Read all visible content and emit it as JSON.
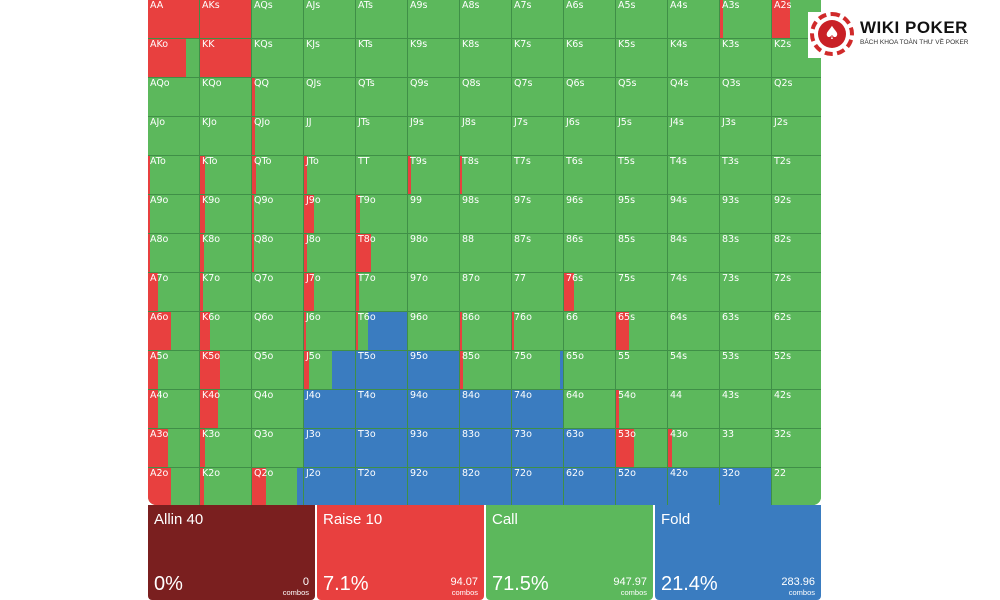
{
  "brand": {
    "name": "WIKI POKER",
    "tagline": "BÁCH KHOA TOÀN THƯ VỀ POKER",
    "icon": "spade-icon"
  },
  "colors": {
    "allin": "#7a1f1f",
    "raise": "#e8403f",
    "call": "#5cb85c",
    "fold": "#3a7cc0"
  },
  "actions": [
    {
      "name": "Allin 40",
      "percent": "0%",
      "combos": "0",
      "combos_label": "combos",
      "color": "#7a1f1f"
    },
    {
      "name": "Raise 10",
      "percent": "7.1%",
      "combos": "94.07",
      "combos_label": "combos",
      "color": "#e8403f"
    },
    {
      "name": "Call",
      "percent": "71.5%",
      "combos": "947.97",
      "combos_label": "combos",
      "color": "#5cb85c"
    },
    {
      "name": "Fold",
      "percent": "21.4%",
      "combos": "283.96",
      "combos_label": "combos",
      "color": "#3a7cc0"
    }
  ],
  "ranks": [
    "A",
    "K",
    "Q",
    "J",
    "T",
    "9",
    "8",
    "7",
    "6",
    "5",
    "4",
    "3",
    "2"
  ],
  "hands": [
    [
      {
        "label": "AA",
        "raise": 1,
        "call": 0,
        "fold": 0
      },
      {
        "label": "AKs",
        "raise": 1,
        "call": 0,
        "fold": 0
      },
      {
        "label": "AQs",
        "raise": 0,
        "call": 1,
        "fold": 0
      },
      {
        "label": "AJs",
        "raise": 0,
        "call": 1,
        "fold": 0
      },
      {
        "label": "ATs",
        "raise": 0,
        "call": 1,
        "fold": 0
      },
      {
        "label": "A9s",
        "raise": 0,
        "call": 1,
        "fold": 0
      },
      {
        "label": "A8s",
        "raise": 0,
        "call": 1,
        "fold": 0
      },
      {
        "label": "A7s",
        "raise": 0,
        "call": 1,
        "fold": 0
      },
      {
        "label": "A6s",
        "raise": 0,
        "call": 1,
        "fold": 0
      },
      {
        "label": "A5s",
        "raise": 0,
        "call": 1,
        "fold": 0
      },
      {
        "label": "A4s",
        "raise": 0,
        "call": 1,
        "fold": 0
      },
      {
        "label": "A3s",
        "raise": 0.05,
        "call": 0.95,
        "fold": 0
      },
      {
        "label": "A2s",
        "raise": 0.35,
        "call": 0.65,
        "fold": 0
      }
    ],
    [
      {
        "label": "AKo",
        "raise": 0.75,
        "call": 0.25,
        "fold": 0
      },
      {
        "label": "KK",
        "raise": 1,
        "call": 0,
        "fold": 0
      },
      {
        "label": "KQs",
        "raise": 0,
        "call": 1,
        "fold": 0
      },
      {
        "label": "KJs",
        "raise": 0,
        "call": 1,
        "fold": 0
      },
      {
        "label": "KTs",
        "raise": 0,
        "call": 1,
        "fold": 0
      },
      {
        "label": "K9s",
        "raise": 0,
        "call": 1,
        "fold": 0
      },
      {
        "label": "K8s",
        "raise": 0,
        "call": 1,
        "fold": 0
      },
      {
        "label": "K7s",
        "raise": 0,
        "call": 1,
        "fold": 0
      },
      {
        "label": "K6s",
        "raise": 0,
        "call": 1,
        "fold": 0
      },
      {
        "label": "K5s",
        "raise": 0,
        "call": 1,
        "fold": 0
      },
      {
        "label": "K4s",
        "raise": 0,
        "call": 1,
        "fold": 0
      },
      {
        "label": "K3s",
        "raise": 0,
        "call": 1,
        "fold": 0
      },
      {
        "label": "K2s",
        "raise": 0,
        "call": 1,
        "fold": 0
      }
    ],
    [
      {
        "label": "AQo",
        "raise": 0,
        "call": 1,
        "fold": 0
      },
      {
        "label": "KQo",
        "raise": 0,
        "call": 1,
        "fold": 0
      },
      {
        "label": "QQ",
        "raise": 0.05,
        "call": 0.95,
        "fold": 0
      },
      {
        "label": "QJs",
        "raise": 0,
        "call": 1,
        "fold": 0
      },
      {
        "label": "QTs",
        "raise": 0,
        "call": 1,
        "fold": 0
      },
      {
        "label": "Q9s",
        "raise": 0,
        "call": 1,
        "fold": 0
      },
      {
        "label": "Q8s",
        "raise": 0,
        "call": 1,
        "fold": 0
      },
      {
        "label": "Q7s",
        "raise": 0,
        "call": 1,
        "fold": 0
      },
      {
        "label": "Q6s",
        "raise": 0,
        "call": 1,
        "fold": 0
      },
      {
        "label": "Q5s",
        "raise": 0,
        "call": 1,
        "fold": 0
      },
      {
        "label": "Q4s",
        "raise": 0,
        "call": 1,
        "fold": 0
      },
      {
        "label": "Q3s",
        "raise": 0,
        "call": 1,
        "fold": 0
      },
      {
        "label": "Q2s",
        "raise": 0,
        "call": 1,
        "fold": 0
      }
    ],
    [
      {
        "label": "AJo",
        "raise": 0,
        "call": 1,
        "fold": 0
      },
      {
        "label": "KJo",
        "raise": 0,
        "call": 1,
        "fold": 0
      },
      {
        "label": "QJo",
        "raise": 0.05,
        "call": 0.95,
        "fold": 0
      },
      {
        "label": "JJ",
        "raise": 0,
        "call": 1,
        "fold": 0
      },
      {
        "label": "JTs",
        "raise": 0,
        "call": 1,
        "fold": 0
      },
      {
        "label": "J9s",
        "raise": 0,
        "call": 1,
        "fold": 0
      },
      {
        "label": "J8s",
        "raise": 0,
        "call": 1,
        "fold": 0
      },
      {
        "label": "J7s",
        "raise": 0,
        "call": 1,
        "fold": 0
      },
      {
        "label": "J6s",
        "raise": 0,
        "call": 1,
        "fold": 0
      },
      {
        "label": "J5s",
        "raise": 0,
        "call": 1,
        "fold": 0
      },
      {
        "label": "J4s",
        "raise": 0,
        "call": 1,
        "fold": 0
      },
      {
        "label": "J3s",
        "raise": 0,
        "call": 1,
        "fold": 0
      },
      {
        "label": "J2s",
        "raise": 0,
        "call": 1,
        "fold": 0
      }
    ],
    [
      {
        "label": "ATo",
        "raise": 0.04,
        "call": 0.96,
        "fold": 0
      },
      {
        "label": "KTo",
        "raise": 0.1,
        "call": 0.9,
        "fold": 0
      },
      {
        "label": "QTo",
        "raise": 0.08,
        "call": 0.92,
        "fold": 0
      },
      {
        "label": "JTo",
        "raise": 0.05,
        "call": 0.95,
        "fold": 0
      },
      {
        "label": "TT",
        "raise": 0,
        "call": 1,
        "fold": 0
      },
      {
        "label": "T9s",
        "raise": 0.05,
        "call": 0.95,
        "fold": 0
      },
      {
        "label": "T8s",
        "raise": 0.04,
        "call": 0.96,
        "fold": 0
      },
      {
        "label": "T7s",
        "raise": 0,
        "call": 1,
        "fold": 0
      },
      {
        "label": "T6s",
        "raise": 0,
        "call": 1,
        "fold": 0
      },
      {
        "label": "T5s",
        "raise": 0,
        "call": 1,
        "fold": 0
      },
      {
        "label": "T4s",
        "raise": 0,
        "call": 1,
        "fold": 0
      },
      {
        "label": "T3s",
        "raise": 0,
        "call": 1,
        "fold": 0
      },
      {
        "label": "T2s",
        "raise": 0,
        "call": 1,
        "fold": 0
      }
    ],
    [
      {
        "label": "A9o",
        "raise": 0.04,
        "call": 0.96,
        "fold": 0
      },
      {
        "label": "K9o",
        "raise": 0.1,
        "call": 0.9,
        "fold": 0
      },
      {
        "label": "Q9o",
        "raise": 0.04,
        "call": 0.96,
        "fold": 0
      },
      {
        "label": "J9o",
        "raise": 0.2,
        "call": 0.8,
        "fold": 0
      },
      {
        "label": "T9o",
        "raise": 0.08,
        "call": 0.92,
        "fold": 0
      },
      {
        "label": "99",
        "raise": 0,
        "call": 1,
        "fold": 0
      },
      {
        "label": "98s",
        "raise": 0,
        "call": 1,
        "fold": 0
      },
      {
        "label": "97s",
        "raise": 0,
        "call": 1,
        "fold": 0
      },
      {
        "label": "96s",
        "raise": 0,
        "call": 1,
        "fold": 0
      },
      {
        "label": "95s",
        "raise": 0,
        "call": 1,
        "fold": 0
      },
      {
        "label": "94s",
        "raise": 0,
        "call": 1,
        "fold": 0
      },
      {
        "label": "93s",
        "raise": 0,
        "call": 1,
        "fold": 0
      },
      {
        "label": "92s",
        "raise": 0,
        "call": 1,
        "fold": 0
      }
    ],
    [
      {
        "label": "A8o",
        "raise": 0.04,
        "call": 0.96,
        "fold": 0
      },
      {
        "label": "K8o",
        "raise": 0.08,
        "call": 0.92,
        "fold": 0
      },
      {
        "label": "Q8o",
        "raise": 0.04,
        "call": 0.96,
        "fold": 0
      },
      {
        "label": "J8o",
        "raise": 0.06,
        "call": 0.94,
        "fold": 0
      },
      {
        "label": "T8o",
        "raise": 0.3,
        "call": 0.7,
        "fold": 0
      },
      {
        "label": "98o",
        "raise": 0,
        "call": 1,
        "fold": 0
      },
      {
        "label": "88",
        "raise": 0,
        "call": 1,
        "fold": 0
      },
      {
        "label": "87s",
        "raise": 0,
        "call": 1,
        "fold": 0
      },
      {
        "label": "86s",
        "raise": 0,
        "call": 1,
        "fold": 0
      },
      {
        "label": "85s",
        "raise": 0,
        "call": 1,
        "fold": 0
      },
      {
        "label": "84s",
        "raise": 0,
        "call": 1,
        "fold": 0
      },
      {
        "label": "83s",
        "raise": 0,
        "call": 1,
        "fold": 0
      },
      {
        "label": "82s",
        "raise": 0,
        "call": 1,
        "fold": 0
      }
    ],
    [
      {
        "label": "A7o",
        "raise": 0.2,
        "call": 0.8,
        "fold": 0
      },
      {
        "label": "K7o",
        "raise": 0.06,
        "call": 0.94,
        "fold": 0
      },
      {
        "label": "Q7o",
        "raise": 0,
        "call": 1,
        "fold": 0
      },
      {
        "label": "J7o",
        "raise": 0.2,
        "call": 0.8,
        "fold": 0
      },
      {
        "label": "T7o",
        "raise": 0.06,
        "call": 0.94,
        "fold": 0
      },
      {
        "label": "97o",
        "raise": 0,
        "call": 1,
        "fold": 0
      },
      {
        "label": "87o",
        "raise": 0,
        "call": 1,
        "fold": 0
      },
      {
        "label": "77",
        "raise": 0,
        "call": 1,
        "fold": 0
      },
      {
        "label": "76s",
        "raise": 0.2,
        "call": 0.8,
        "fold": 0
      },
      {
        "label": "75s",
        "raise": 0,
        "call": 1,
        "fold": 0
      },
      {
        "label": "74s",
        "raise": 0,
        "call": 1,
        "fold": 0
      },
      {
        "label": "73s",
        "raise": 0,
        "call": 1,
        "fold": 0
      },
      {
        "label": "72s",
        "raise": 0,
        "call": 1,
        "fold": 0
      }
    ],
    [
      {
        "label": "A6o",
        "raise": 0.45,
        "call": 0.55,
        "fold": 0
      },
      {
        "label": "K6o",
        "raise": 0.2,
        "call": 0.8,
        "fold": 0
      },
      {
        "label": "Q6o",
        "raise": 0,
        "call": 1,
        "fold": 0
      },
      {
        "label": "J6o",
        "raise": 0.04,
        "call": 0.96,
        "fold": 0
      },
      {
        "label": "T6o",
        "raise": 0.04,
        "call": 0.2,
        "fold": 0.76
      },
      {
        "label": "96o",
        "raise": 0,
        "call": 1,
        "fold": 0
      },
      {
        "label": "86o",
        "raise": 0.04,
        "call": 0.96,
        "fold": 0
      },
      {
        "label": "76o",
        "raise": 0.04,
        "call": 0.96,
        "fold": 0
      },
      {
        "label": "66",
        "raise": 0,
        "call": 1,
        "fold": 0
      },
      {
        "label": "65s",
        "raise": 0.25,
        "call": 0.75,
        "fold": 0
      },
      {
        "label": "64s",
        "raise": 0,
        "call": 1,
        "fold": 0
      },
      {
        "label": "63s",
        "raise": 0,
        "call": 1,
        "fold": 0
      },
      {
        "label": "62s",
        "raise": 0,
        "call": 1,
        "fold": 0
      }
    ],
    [
      {
        "label": "A5o",
        "raise": 0.2,
        "call": 0.8,
        "fold": 0
      },
      {
        "label": "K5o",
        "raise": 0.4,
        "call": 0.6,
        "fold": 0
      },
      {
        "label": "Q5o",
        "raise": 0,
        "call": 1,
        "fold": 0
      },
      {
        "label": "J5o",
        "raise": 0.1,
        "call": 0.45,
        "fold": 0.45
      },
      {
        "label": "T5o",
        "raise": 0,
        "call": 0,
        "fold": 1
      },
      {
        "label": "95o",
        "raise": 0,
        "call": 0,
        "fold": 1
      },
      {
        "label": "85o",
        "raise": 0.05,
        "call": 0.95,
        "fold": 0
      },
      {
        "label": "75o",
        "raise": 0,
        "call": 0.95,
        "fold": 0.05
      },
      {
        "label": "65o",
        "raise": 0,
        "call": 1,
        "fold": 0
      },
      {
        "label": "55",
        "raise": 0,
        "call": 1,
        "fold": 0
      },
      {
        "label": "54s",
        "raise": 0,
        "call": 1,
        "fold": 0
      },
      {
        "label": "53s",
        "raise": 0,
        "call": 1,
        "fold": 0
      },
      {
        "label": "52s",
        "raise": 0,
        "call": 1,
        "fold": 0
      }
    ],
    [
      {
        "label": "A4o",
        "raise": 0.2,
        "call": 0.8,
        "fold": 0
      },
      {
        "label": "K4o",
        "raise": 0.35,
        "call": 0.65,
        "fold": 0
      },
      {
        "label": "Q4o",
        "raise": 0,
        "call": 1,
        "fold": 0
      },
      {
        "label": "J4o",
        "raise": 0,
        "call": 0,
        "fold": 1
      },
      {
        "label": "T4o",
        "raise": 0,
        "call": 0,
        "fold": 1
      },
      {
        "label": "94o",
        "raise": 0,
        "call": 0,
        "fold": 1
      },
      {
        "label": "84o",
        "raise": 0,
        "call": 0,
        "fold": 1
      },
      {
        "label": "74o",
        "raise": 0,
        "call": 0,
        "fold": 1
      },
      {
        "label": "64o",
        "raise": 0,
        "call": 1,
        "fold": 0
      },
      {
        "label": "54o",
        "raise": 0.05,
        "call": 0.95,
        "fold": 0
      },
      {
        "label": "44",
        "raise": 0,
        "call": 1,
        "fold": 0
      },
      {
        "label": "43s",
        "raise": 0,
        "call": 1,
        "fold": 0
      },
      {
        "label": "42s",
        "raise": 0,
        "call": 1,
        "fold": 0
      }
    ],
    [
      {
        "label": "A3o",
        "raise": 0.4,
        "call": 0.6,
        "fold": 0
      },
      {
        "label": "K3o",
        "raise": 0.1,
        "call": 0.9,
        "fold": 0
      },
      {
        "label": "Q3o",
        "raise": 0,
        "call": 1,
        "fold": 0
      },
      {
        "label": "J3o",
        "raise": 0,
        "call": 0,
        "fold": 1
      },
      {
        "label": "T3o",
        "raise": 0,
        "call": 0,
        "fold": 1
      },
      {
        "label": "93o",
        "raise": 0,
        "call": 0,
        "fold": 1
      },
      {
        "label": "83o",
        "raise": 0,
        "call": 0,
        "fold": 1
      },
      {
        "label": "73o",
        "raise": 0,
        "call": 0,
        "fold": 1
      },
      {
        "label": "63o",
        "raise": 0,
        "call": 0,
        "fold": 1
      },
      {
        "label": "53o",
        "raise": 0.35,
        "call": 0.65,
        "fold": 0
      },
      {
        "label": "43o",
        "raise": 0.08,
        "call": 0.92,
        "fold": 0
      },
      {
        "label": "33",
        "raise": 0,
        "call": 1,
        "fold": 0
      },
      {
        "label": "32s",
        "raise": 0,
        "call": 1,
        "fold": 0
      }
    ],
    [
      {
        "label": "A2o",
        "raise": 0.45,
        "call": 0.55,
        "fold": 0
      },
      {
        "label": "K2o",
        "raise": 0.08,
        "call": 0.92,
        "fold": 0
      },
      {
        "label": "Q2o",
        "raise": 0.28,
        "call": 0.6,
        "fold": 0.12
      },
      {
        "label": "J2o",
        "raise": 0,
        "call": 0,
        "fold": 1
      },
      {
        "label": "T2o",
        "raise": 0,
        "call": 0,
        "fold": 1
      },
      {
        "label": "92o",
        "raise": 0,
        "call": 0,
        "fold": 1
      },
      {
        "label": "82o",
        "raise": 0,
        "call": 0,
        "fold": 1
      },
      {
        "label": "72o",
        "raise": 0,
        "call": 0,
        "fold": 1
      },
      {
        "label": "62o",
        "raise": 0,
        "call": 0,
        "fold": 1
      },
      {
        "label": "52o",
        "raise": 0,
        "call": 0,
        "fold": 1
      },
      {
        "label": "42o",
        "raise": 0,
        "call": 0,
        "fold": 1
      },
      {
        "label": "32o",
        "raise": 0,
        "call": 0,
        "fold": 1
      },
      {
        "label": "22",
        "raise": 0,
        "call": 1,
        "fold": 0
      }
    ]
  ]
}
